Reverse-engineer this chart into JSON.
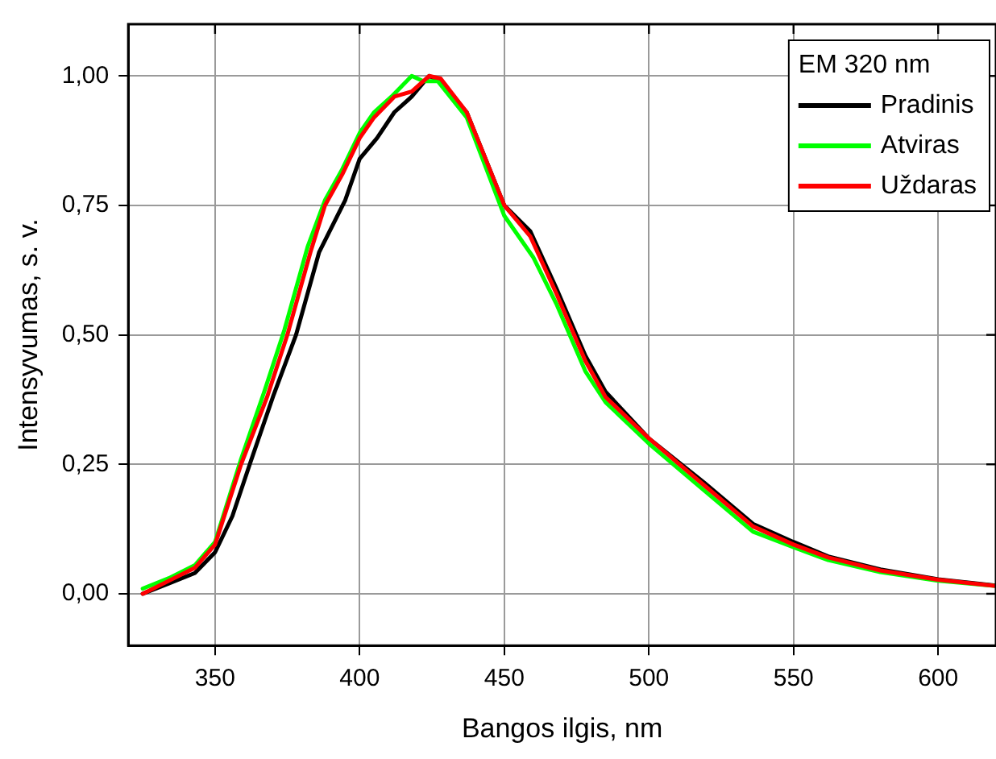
{
  "chart_data": {
    "type": "line",
    "xlabel": "Bangos ilgis, nm",
    "ylabel": "Intensyvumas, s. v.",
    "legend_title": "EM 320 nm",
    "legend": "top right",
    "grid": true,
    "marker": "none",
    "line_style": "solid",
    "xlim": [
      320,
      620
    ],
    "ylim": [
      -0.1,
      1.1
    ],
    "xticks": [
      350,
      400,
      450,
      500,
      550,
      600
    ],
    "yticks": [
      {
        "value": 0,
        "label": "0,00"
      },
      {
        "value": 0.25,
        "label": "0,25"
      },
      {
        "value": 0.5,
        "label": "0,50"
      },
      {
        "value": 0.75,
        "label": "0,75"
      },
      {
        "value": 1,
        "label": "1,00"
      }
    ],
    "series": [
      {
        "name": "Pradinis",
        "color": "#000000",
        "x": [
          325,
          334,
          343,
          350,
          356,
          362,
          370,
          378,
          386,
          395,
          400,
          406,
          412,
          418,
          424,
          428,
          437,
          450,
          459,
          468,
          478,
          485,
          500,
          519,
          536,
          550,
          562,
          580,
          600,
          620
        ],
        "values": [
          0,
          0.02,
          0.04,
          0.08,
          0.15,
          0.25,
          0.38,
          0.5,
          0.66,
          0.76,
          0.84,
          0.88,
          0.93,
          0.96,
          1.0,
          0.99,
          0.93,
          0.75,
          0.7,
          0.59,
          0.46,
          0.39,
          0.3,
          0.215,
          0.135,
          0.1,
          0.072,
          0.047,
          0.028,
          0.016
        ]
      },
      {
        "name": "Atviras",
        "color": "#00ff00",
        "x": [
          325,
          334,
          343,
          350,
          359,
          367,
          374,
          382,
          388,
          394,
          400,
          405,
          411,
          418,
          422,
          427,
          437,
          450,
          455,
          460,
          468,
          478,
          485,
          500,
          519,
          536,
          550,
          562,
          580,
          600,
          620
        ],
        "values": [
          0.01,
          0.03,
          0.055,
          0.1,
          0.26,
          0.39,
          0.51,
          0.67,
          0.76,
          0.82,
          0.89,
          0.93,
          0.96,
          1.0,
          0.99,
          0.99,
          0.92,
          0.73,
          0.69,
          0.65,
          0.56,
          0.43,
          0.37,
          0.29,
          0.2,
          0.12,
          0.09,
          0.065,
          0.042,
          0.025,
          0.015
        ]
      },
      {
        "name": "Uždaras",
        "color": "#ff0000",
        "x": [
          325,
          334,
          343,
          350,
          359,
          368,
          375,
          383,
          388,
          394,
          400,
          405,
          412,
          418,
          424,
          428,
          437,
          450,
          459,
          468,
          478,
          485,
          500,
          519,
          536,
          550,
          562,
          580,
          600,
          620
        ],
        "values": [
          0,
          0.025,
          0.05,
          0.095,
          0.25,
          0.38,
          0.5,
          0.66,
          0.75,
          0.81,
          0.88,
          0.92,
          0.96,
          0.97,
          1.0,
          0.995,
          0.93,
          0.75,
          0.69,
          0.58,
          0.45,
          0.38,
          0.3,
          0.21,
          0.13,
          0.095,
          0.07,
          0.045,
          0.027,
          0.015
        ]
      }
    ]
  }
}
